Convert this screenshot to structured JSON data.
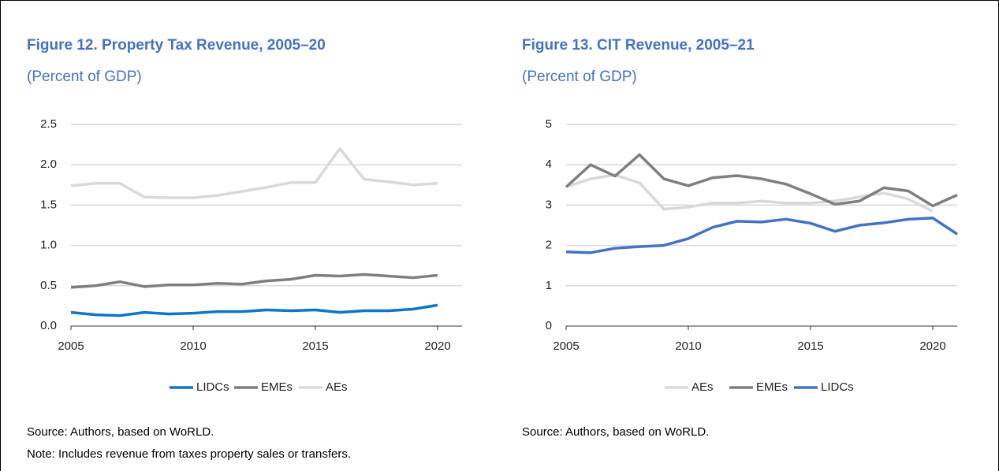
{
  "chart_data": [
    {
      "type": "line",
      "title": "Figure 12. Property Tax Revenue, 2005–20",
      "subtitle": "(Percent of GDP)",
      "x": [
        2005,
        2006,
        2007,
        2008,
        2009,
        2010,
        2011,
        2012,
        2013,
        2014,
        2015,
        2016,
        2017,
        2018,
        2019,
        2020
      ],
      "xlim": [
        2005,
        2021
      ],
      "xticks": [
        2005,
        2010,
        2015,
        2020
      ],
      "ylim": [
        0,
        2.5
      ],
      "yticks": [
        {
          "value": 0,
          "label": "0.0"
        },
        0.5,
        {
          "value": 1,
          "label": "1.0"
        },
        1.5,
        {
          "value": 2,
          "label": "2.0"
        },
        2.5
      ],
      "grid": true,
      "legend": "bottom",
      "series": [
        {
          "name": "LIDCs",
          "color": "#0f75c8",
          "values": [
            0.17,
            0.14,
            0.13,
            0.17,
            0.15,
            0.16,
            0.18,
            0.18,
            0.2,
            0.19,
            0.2,
            0.17,
            0.19,
            0.19,
            0.21,
            0.26
          ]
        },
        {
          "name": "EMEs",
          "color": "#7f7f7f",
          "values": [
            0.48,
            0.5,
            0.55,
            0.49,
            0.51,
            0.51,
            0.53,
            0.52,
            0.56,
            0.58,
            0.63,
            0.62,
            0.64,
            0.62,
            0.6,
            0.63
          ]
        },
        {
          "name": "AEs",
          "color": "#d9d9d9",
          "values": [
            1.74,
            1.77,
            1.77,
            1.6,
            1.59,
            1.59,
            1.62,
            1.67,
            1.72,
            1.78,
            1.78,
            2.2,
            1.82,
            1.79,
            1.75,
            1.77
          ]
        }
      ],
      "source": "Source: Authors, based on WoRLD.",
      "note": "Note: Includes revenue from taxes property sales or transfers."
    },
    {
      "type": "line",
      "title": "Figure 13. CIT Revenue, 2005–21",
      "subtitle": "(Percent of GDP)",
      "x": [
        2005,
        2006,
        2007,
        2008,
        2009,
        2010,
        2011,
        2012,
        2013,
        2014,
        2015,
        2016,
        2017,
        2018,
        2019,
        2020,
        2021
      ],
      "xlim": [
        2005,
        2021
      ],
      "xticks": [
        2005,
        2010,
        2015,
        2020
      ],
      "ylim": [
        0,
        5
      ],
      "yticks": [
        0,
        1,
        2,
        3,
        4,
        5
      ],
      "grid": true,
      "legend": "bottom",
      "series": [
        {
          "name": "AEs",
          "color": "#d9d9d9",
          "values": [
            3.45,
            3.65,
            3.75,
            3.55,
            2.9,
            2.95,
            3.05,
            3.05,
            3.1,
            3.05,
            3.05,
            3.1,
            3.2,
            3.3,
            3.15,
            2.85,
            null
          ]
        },
        {
          "name": "EMEs",
          "color": "#7f7f7f",
          "values": [
            3.45,
            4.0,
            3.72,
            4.25,
            3.65,
            3.48,
            3.68,
            3.73,
            3.65,
            3.52,
            3.28,
            3.02,
            3.1,
            3.43,
            3.35,
            2.98,
            3.25
          ]
        },
        {
          "name": "LIDCs",
          "color": "#4472c4",
          "values": [
            1.84,
            1.82,
            1.93,
            1.97,
            2.0,
            2.17,
            2.45,
            2.6,
            2.58,
            2.65,
            2.55,
            2.35,
            2.5,
            2.56,
            2.65,
            2.68,
            2.28
          ]
        }
      ],
      "source": "Source: Authors, based on WoRLD."
    }
  ]
}
